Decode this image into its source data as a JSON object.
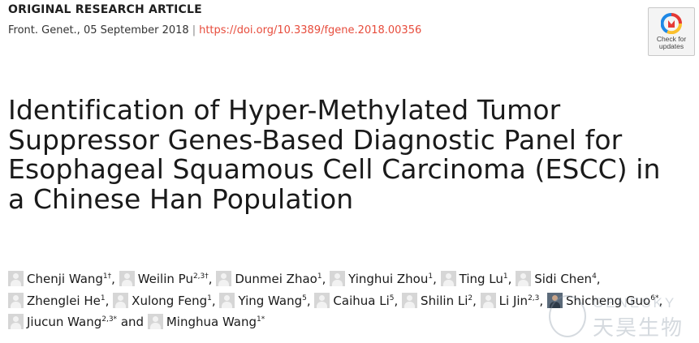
{
  "article_type": "ORIGINAL RESEARCH ARTICLE",
  "citation": {
    "journal_date": "Front. Genet., 05 September 2018",
    "separator": "|",
    "doi_url": "https://doi.org/10.3389/fgene.2018.00356"
  },
  "badge": {
    "line1": "Check for",
    "line2": "updates",
    "colors": [
      "#e53935",
      "#fbc02d",
      "#1e88e5"
    ]
  },
  "title": "Identification of Hyper-Methylated Tumor Suppressor Genes-Based Diagnostic Panel for Esophageal Squamous Cell Carcinoma (ESCC) in a Chinese Han Population",
  "authors": [
    {
      "name": "Chenji Wang",
      "sup": "1†",
      "after": ", "
    },
    {
      "name": "Weilin Pu",
      "sup": "2,3†",
      "after": ", "
    },
    {
      "name": "Dunmei Zhao",
      "sup": "1",
      "after": ", "
    },
    {
      "name": "Yinghui Zhou",
      "sup": "1",
      "after": ", "
    },
    {
      "name": "Ting Lu",
      "sup": "1",
      "after": ", "
    },
    {
      "name": "Sidi Chen",
      "sup": "4",
      "after": ", "
    },
    {
      "name": "Zhenglei He",
      "sup": "1",
      "after": ", "
    },
    {
      "name": "Xulong Feng",
      "sup": "1",
      "after": ", "
    },
    {
      "name": "Ying Wang",
      "sup": "5",
      "after": ", "
    },
    {
      "name": "Caihua Li",
      "sup": "5",
      "after": ", "
    },
    {
      "name": "Shilin Li",
      "sup": "2",
      "after": ", "
    },
    {
      "name": "Li Jin",
      "sup": "2,3",
      "after": ", "
    },
    {
      "name": "Shicheng Guo",
      "sup": "6*",
      "after": ", ",
      "photo": true
    },
    {
      "name": "Jiucun Wang",
      "sup": "2,3*",
      "after": " and "
    },
    {
      "name": "Minghua Wang",
      "sup": "1*",
      "after": ""
    }
  ],
  "watermark": {
    "en": "GENESKY",
    "cn": "天昊生物"
  }
}
